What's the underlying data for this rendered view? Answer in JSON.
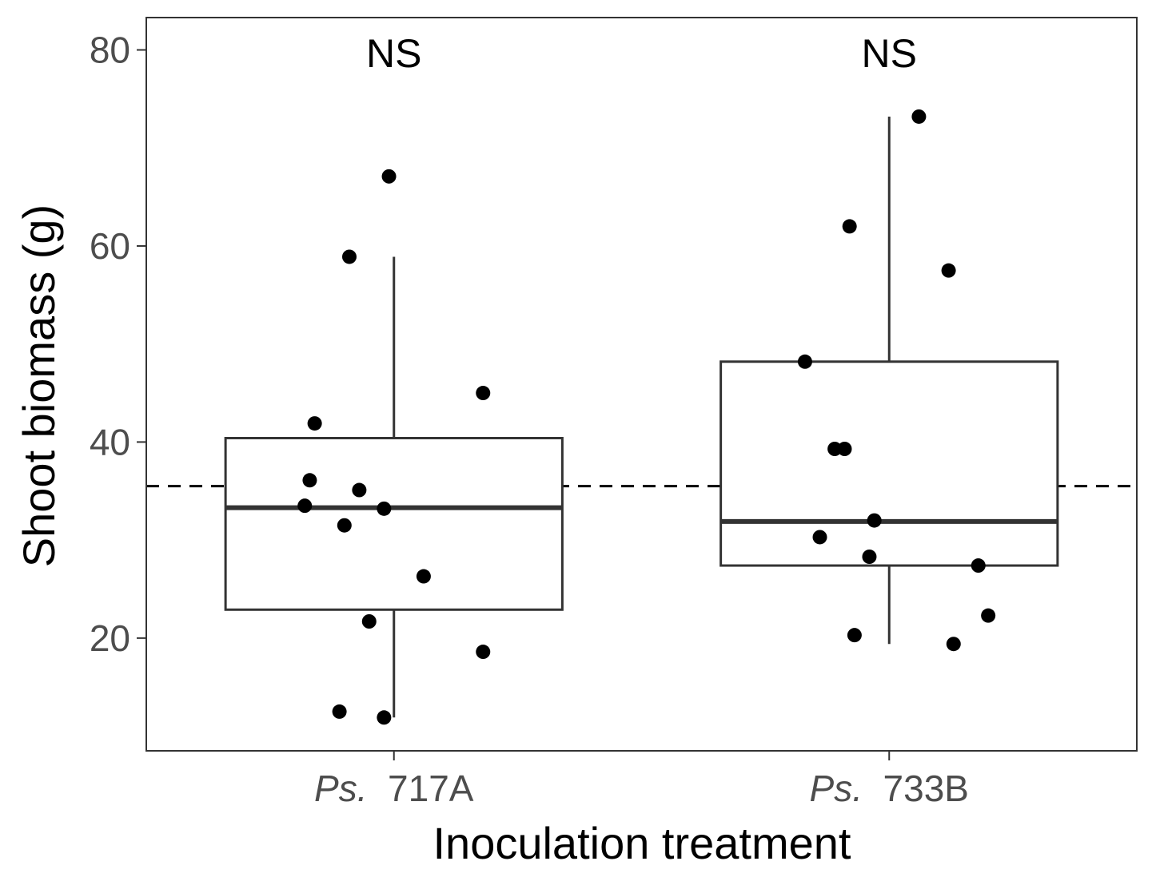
{
  "chart_data": {
    "type": "box",
    "xlabel": "Inoculation treatment",
    "ylabel": "Shoot biomass (g)",
    "ylim": [
      8.5,
      83.3
    ],
    "y_ticks": [
      20,
      40,
      60,
      80
    ],
    "reference_line": {
      "y": 35.5,
      "style": "dashed"
    },
    "grid": false,
    "legend": "none",
    "colors": {
      "points": "#000000",
      "box": "#333333",
      "axis": "#333333",
      "tick_label": "#4d4d4d"
    },
    "groups": [
      {
        "label_italic": "Ps.",
        "label_rest": "717A",
        "annotation": "NS",
        "box": {
          "lower_whisker": 11.9,
          "q1": 22.9,
          "median": 33.3,
          "q3": 40.4,
          "upper_whisker": 58.9
        },
        "points": [
          {
            "y": 67.1,
            "jitter": -0.01
          },
          {
            "y": 58.9,
            "jitter": -0.09
          },
          {
            "y": 45.0,
            "jitter": 0.18
          },
          {
            "y": 41.9,
            "jitter": -0.16
          },
          {
            "y": 36.1,
            "jitter": -0.17
          },
          {
            "y": 35.1,
            "jitter": -0.07
          },
          {
            "y": 33.5,
            "jitter": -0.18
          },
          {
            "y": 33.2,
            "jitter": -0.02
          },
          {
            "y": 31.5,
            "jitter": -0.1
          },
          {
            "y": 26.3,
            "jitter": 0.06
          },
          {
            "y": 21.7,
            "jitter": -0.05
          },
          {
            "y": 18.6,
            "jitter": 0.18
          },
          {
            "y": 12.5,
            "jitter": -0.11
          },
          {
            "y": 11.9,
            "jitter": -0.02
          }
        ]
      },
      {
        "label_italic": "Ps.",
        "label_rest": "733B",
        "annotation": "NS",
        "box": {
          "lower_whisker": 19.4,
          "q1": 27.4,
          "median": 31.9,
          "q3": 48.2,
          "upper_whisker": 73.2
        },
        "points": [
          {
            "y": 73.2,
            "jitter": 0.06
          },
          {
            "y": 62.0,
            "jitter": -0.08
          },
          {
            "y": 57.5,
            "jitter": 0.12
          },
          {
            "y": 48.2,
            "jitter": -0.17
          },
          {
            "y": 39.3,
            "jitter": -0.11
          },
          {
            "y": 39.3,
            "jitter": -0.09
          },
          {
            "y": 32.0,
            "jitter": -0.03
          },
          {
            "y": 30.3,
            "jitter": -0.14
          },
          {
            "y": 28.3,
            "jitter": -0.04
          },
          {
            "y": 27.4,
            "jitter": 0.18
          },
          {
            "y": 22.3,
            "jitter": 0.2
          },
          {
            "y": 20.3,
            "jitter": -0.07
          },
          {
            "y": 19.4,
            "jitter": 0.13
          }
        ]
      }
    ]
  }
}
